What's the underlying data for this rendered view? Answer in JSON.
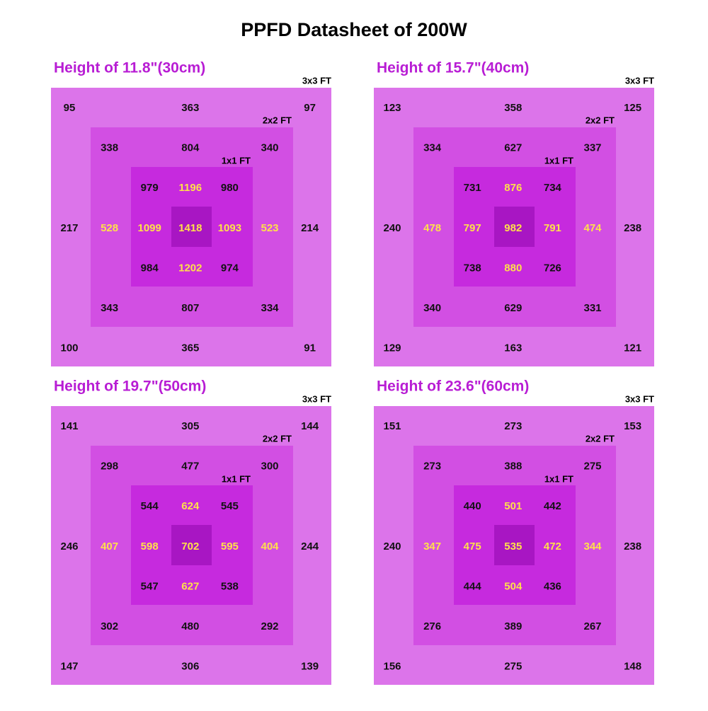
{
  "title": "PPFD Datasheet of 200W",
  "zones": [
    "3x3 FT",
    "2x2 FT",
    "1x1 FT"
  ],
  "panels": [
    {
      "title": "Height of 11.8\"(30cm)",
      "grid": [
        [
          95,
          null,
          null,
          363,
          null,
          null,
          97
        ],
        [
          null,
          338,
          null,
          804,
          null,
          340,
          null
        ],
        [
          null,
          null,
          979,
          1196,
          980,
          null,
          null
        ],
        [
          217,
          528,
          1099,
          1418,
          1093,
          523,
          214
        ],
        [
          null,
          null,
          984,
          1202,
          974,
          null,
          null
        ],
        [
          null,
          343,
          null,
          807,
          null,
          334,
          null
        ],
        [
          100,
          null,
          null,
          365,
          null,
          null,
          91
        ]
      ]
    },
    {
      "title": "Height of 15.7\"(40cm)",
      "grid": [
        [
          123,
          null,
          null,
          358,
          null,
          null,
          125
        ],
        [
          null,
          334,
          null,
          627,
          null,
          337,
          null
        ],
        [
          null,
          null,
          731,
          876,
          734,
          null,
          null
        ],
        [
          240,
          478,
          797,
          982,
          791,
          474,
          238
        ],
        [
          null,
          null,
          738,
          880,
          726,
          null,
          null
        ],
        [
          null,
          340,
          null,
          629,
          null,
          331,
          null
        ],
        [
          129,
          null,
          null,
          163,
          null,
          null,
          121
        ]
      ]
    },
    {
      "title": "Height of 19.7\"(50cm)",
      "grid": [
        [
          141,
          null,
          null,
          305,
          null,
          null,
          144
        ],
        [
          null,
          298,
          null,
          477,
          null,
          300,
          null
        ],
        [
          null,
          null,
          544,
          624,
          545,
          null,
          null
        ],
        [
          246,
          407,
          598,
          702,
          595,
          404,
          244
        ],
        [
          null,
          null,
          547,
          627,
          538,
          null,
          null
        ],
        [
          null,
          302,
          null,
          480,
          null,
          292,
          null
        ],
        [
          147,
          null,
          null,
          306,
          null,
          null,
          139
        ]
      ]
    },
    {
      "title": "Height of 23.6\"(60cm)",
      "grid": [
        [
          151,
          null,
          null,
          273,
          null,
          null,
          153
        ],
        [
          null,
          273,
          null,
          388,
          null,
          275,
          null
        ],
        [
          null,
          null,
          440,
          501,
          442,
          null,
          null
        ],
        [
          240,
          347,
          475,
          535,
          472,
          344,
          238
        ],
        [
          null,
          null,
          444,
          504,
          436,
          null,
          null
        ],
        [
          null,
          276,
          null,
          389,
          null,
          267,
          null
        ],
        [
          156,
          null,
          null,
          275,
          null,
          null,
          148
        ]
      ]
    }
  ]
}
